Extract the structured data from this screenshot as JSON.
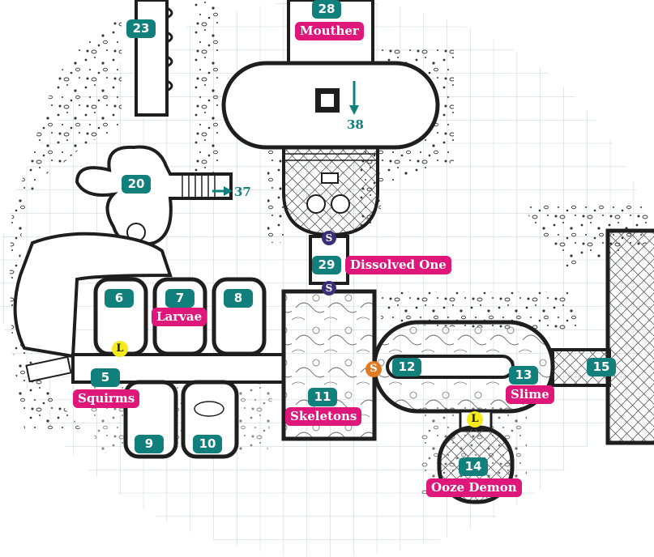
{
  "colors": {
    "room_tag": "#11807d",
    "name_label": "#e0177a",
    "marker_L": "#f5ea1c",
    "marker_S_orange": "#e07a22",
    "marker_S_purple": "#3b2f7a",
    "wall": "#1e1e1e",
    "grid": "#c9cfd6"
  },
  "rooms": [
    {
      "id": "room-23",
      "number": "23"
    },
    {
      "id": "room-28",
      "number": "28",
      "name": "Mouther"
    },
    {
      "id": "room-20",
      "number": "20"
    },
    {
      "id": "room-29",
      "number": "29",
      "name": "Dissolved One"
    },
    {
      "id": "room-6",
      "number": "6"
    },
    {
      "id": "room-7",
      "number": "7",
      "name": "Larvae"
    },
    {
      "id": "room-8",
      "number": "8"
    },
    {
      "id": "room-5",
      "number": "5",
      "name": "Squirms"
    },
    {
      "id": "room-9",
      "number": "9"
    },
    {
      "id": "room-10",
      "number": "10"
    },
    {
      "id": "room-11",
      "number": "11",
      "name": "Skeletons"
    },
    {
      "id": "room-12",
      "number": "12"
    },
    {
      "id": "room-13",
      "number": "13",
      "name": "Slime"
    },
    {
      "id": "room-14",
      "number": "14",
      "name": "Ooze Demon"
    },
    {
      "id": "room-15",
      "number": "15"
    }
  ],
  "exits": [
    {
      "id": "exit-38",
      "label": "38",
      "direction": "down-arrow"
    },
    {
      "id": "exit-37",
      "label": "37",
      "direction": "right-arrow"
    }
  ],
  "markers": [
    {
      "id": "marker-l-west",
      "letter": "L"
    },
    {
      "id": "marker-l-south",
      "letter": "L"
    },
    {
      "id": "marker-s-12",
      "letter": "S"
    },
    {
      "id": "marker-s-29-north",
      "letter": "S"
    },
    {
      "id": "marker-s-29-south",
      "letter": "S"
    }
  ]
}
